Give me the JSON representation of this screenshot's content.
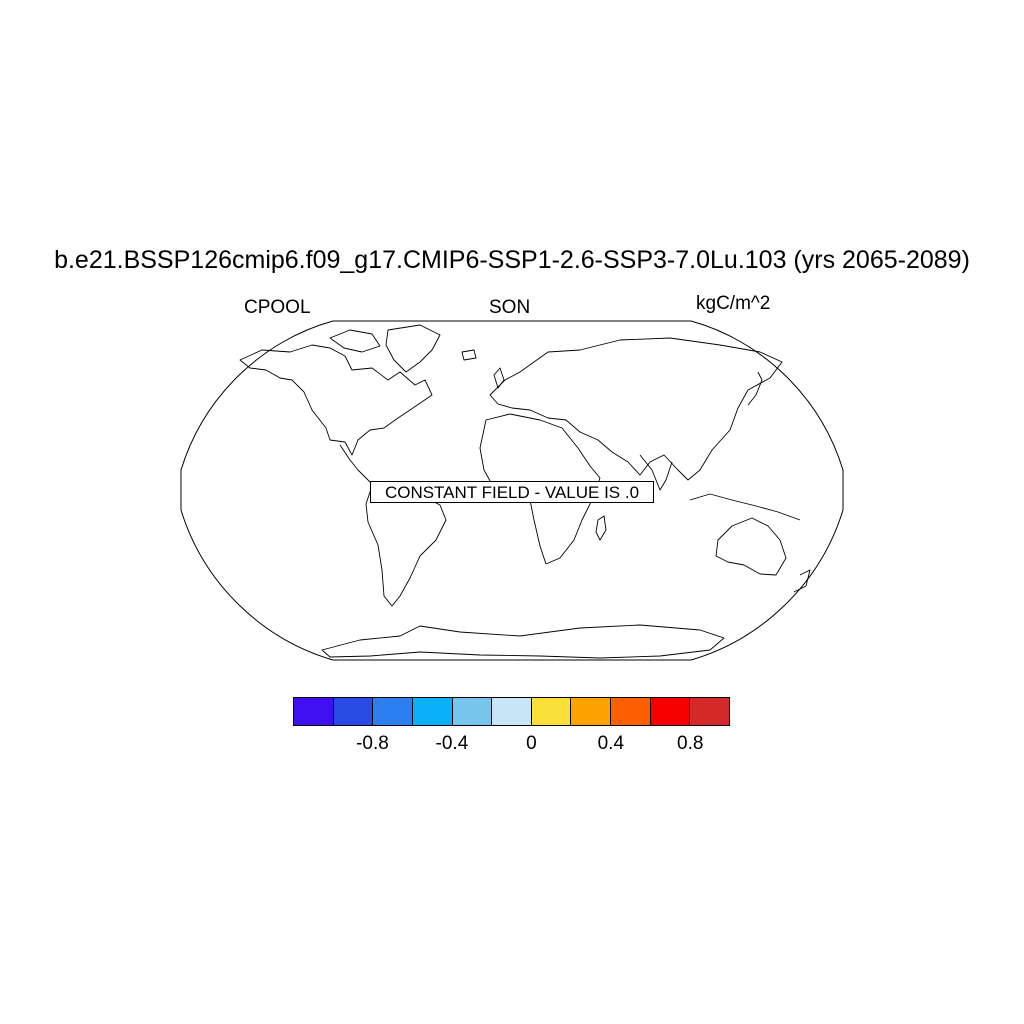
{
  "title": "b.e21.BSSP126cmip6.f09_g17.CMIP6-SSP1-2.6-SSP3-7.0Lu.103 (yrs 2065-2089)",
  "subtitle_left": "CPOOL",
  "subtitle_center": "SON",
  "subtitle_right": "kgC/m^2",
  "constant_field_label": "CONSTANT FIELD - VALUE IS .0",
  "map": {
    "projection": "Robinson",
    "coastlines": true
  },
  "colorbar": {
    "colors": [
      "#4010f0",
      "#2a4ae6",
      "#2c7ff0",
      "#0ab0f8",
      "#78c6ee",
      "#c8e6f8",
      "#fbe03a",
      "#fba400",
      "#fc6000",
      "#f80000",
      "#d42a2a"
    ],
    "tick_labels": [
      "-0.8",
      "-0.4",
      "0",
      "0.4",
      "0.8"
    ]
  }
}
